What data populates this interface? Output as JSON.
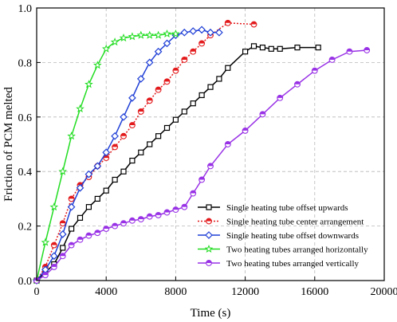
{
  "chart_data": {
    "type": "line",
    "xlabel": "Time (s)",
    "ylabel": "Friction of PCM melted",
    "xlim": [
      0,
      20000
    ],
    "ylim": [
      0,
      1.0
    ],
    "xticks": [
      0,
      4000,
      8000,
      12000,
      16000,
      20000
    ],
    "yticks": [
      0.0,
      0.2,
      0.4,
      0.6,
      0.8,
      1.0
    ],
    "xtick_labels": [
      "0",
      "4000",
      "8000",
      "12000",
      "16000",
      "20000"
    ],
    "ytick_labels": [
      "0.0",
      "0.2",
      "0.4",
      "0.6",
      "0.8",
      "1.0"
    ],
    "grid": "dashed",
    "legend_position": "bottom-right",
    "series": [
      {
        "name": "Single heating tube offset upwards",
        "color": "#000000",
        "marker": "square",
        "line": "solid",
        "x": [
          0,
          500,
          1000,
          1500,
          2000,
          2500,
          3000,
          3500,
          4000,
          4500,
          5000,
          5500,
          6000,
          6500,
          7000,
          7500,
          8000,
          8500,
          9000,
          9500,
          10000,
          10500,
          11000,
          12000,
          12500,
          13000,
          13500,
          14000,
          15000,
          16200
        ],
        "y": [
          0,
          0.03,
          0.06,
          0.12,
          0.19,
          0.23,
          0.27,
          0.3,
          0.33,
          0.37,
          0.4,
          0.44,
          0.47,
          0.5,
          0.53,
          0.56,
          0.59,
          0.62,
          0.65,
          0.68,
          0.71,
          0.74,
          0.78,
          0.84,
          0.86,
          0.855,
          0.85,
          0.85,
          0.855,
          0.855
        ]
      },
      {
        "name": "Single heating tube center arrangement",
        "color": "#e31a1c",
        "marker": "circle",
        "line": "dotted",
        "x": [
          0,
          500,
          1000,
          1500,
          2000,
          2500,
          3000,
          3500,
          4000,
          4500,
          5000,
          5500,
          6000,
          6500,
          7000,
          7500,
          8000,
          8500,
          9000,
          9500,
          10000,
          11000,
          12500
        ],
        "y": [
          0,
          0.05,
          0.13,
          0.21,
          0.3,
          0.35,
          0.38,
          0.42,
          0.45,
          0.49,
          0.53,
          0.57,
          0.62,
          0.66,
          0.7,
          0.73,
          0.77,
          0.81,
          0.84,
          0.87,
          0.9,
          0.945,
          0.94
        ]
      },
      {
        "name": "Single heating tube offset downwards",
        "color": "#1f3fd6",
        "marker": "diamond",
        "line": "solid",
        "x": [
          0,
          500,
          1000,
          1500,
          2000,
          2500,
          3000,
          3500,
          4000,
          4500,
          5000,
          5500,
          6000,
          6500,
          7000,
          7500,
          8000,
          8500,
          9000,
          9500,
          10000,
          10500
        ],
        "y": [
          0,
          0.04,
          0.09,
          0.17,
          0.27,
          0.34,
          0.39,
          0.42,
          0.47,
          0.53,
          0.6,
          0.67,
          0.74,
          0.8,
          0.84,
          0.87,
          0.9,
          0.91,
          0.915,
          0.92,
          0.91,
          0.91
        ]
      },
      {
        "name": "Two heating tubes arranged horizontally",
        "color": "#22dd22",
        "marker": "star",
        "line": "solid",
        "x": [
          0,
          500,
          1000,
          1500,
          2000,
          2500,
          3000,
          3500,
          4000,
          4500,
          5000,
          5500,
          6000,
          6500,
          7000,
          7500,
          8000
        ],
        "y": [
          0,
          0.14,
          0.27,
          0.4,
          0.53,
          0.63,
          0.72,
          0.79,
          0.85,
          0.875,
          0.89,
          0.895,
          0.9,
          0.9,
          0.9,
          0.905,
          0.905
        ]
      },
      {
        "name": "Two heating tubes arranged vertically",
        "color": "#9932e6",
        "marker": "circle",
        "line": "solid",
        "x": [
          0,
          500,
          1000,
          1500,
          2000,
          2500,
          3000,
          3500,
          4000,
          4500,
          5000,
          5500,
          6000,
          6500,
          7000,
          7500,
          8000,
          8500,
          9000,
          9500,
          10000,
          11000,
          12000,
          13000,
          14000,
          15000,
          16000,
          17000,
          18000,
          19000
        ],
        "y": [
          0,
          0.02,
          0.05,
          0.09,
          0.13,
          0.15,
          0.165,
          0.175,
          0.19,
          0.2,
          0.21,
          0.22,
          0.225,
          0.235,
          0.24,
          0.25,
          0.26,
          0.27,
          0.32,
          0.37,
          0.42,
          0.5,
          0.55,
          0.61,
          0.67,
          0.72,
          0.77,
          0.81,
          0.84,
          0.845
        ]
      }
    ]
  }
}
